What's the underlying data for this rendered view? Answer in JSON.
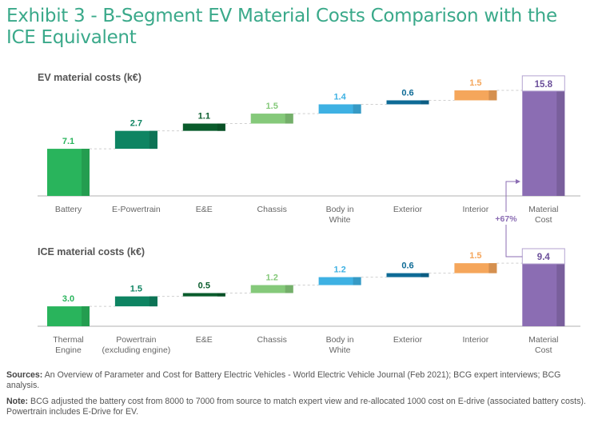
{
  "title": "Exhibit 3 - B-Segment EV Material Costs Comparison with the ICE Equivalent",
  "chart_data": [
    {
      "type": "bar",
      "subtype": "waterfall",
      "title": "EV material costs (k€)",
      "unit": "k€",
      "categories": [
        [
          "Battery"
        ],
        [
          "E-Powertrain"
        ],
        [
          "E&E"
        ],
        [
          "Chassis"
        ],
        [
          "Body in",
          "White"
        ],
        [
          "Exterior"
        ],
        [
          "Interior"
        ],
        [
          "Material",
          "Cost"
        ]
      ],
      "values": [
        7.1,
        2.7,
        1.1,
        1.5,
        1.4,
        0.6,
        1.5,
        15.8
      ],
      "value_labels": [
        "7.1",
        "2.7",
        "1.1",
        "1.5",
        "1.4",
        "0.6",
        "1.5",
        "15.8"
      ],
      "total_index": 7,
      "colors": [
        "#29b45c",
        "#0e8462",
        "#0a5c2c",
        "#85c97a",
        "#3eb1e3",
        "#0e6b96",
        "#f5a65b",
        "#8b6db3"
      ],
      "ylim": [
        0,
        16
      ],
      "grid": false
    },
    {
      "type": "bar",
      "subtype": "waterfall",
      "title": "ICE material costs (k€)",
      "unit": "k€",
      "categories": [
        [
          "Thermal",
          "Engine"
        ],
        [
          "Powertrain",
          "(excluding engine)"
        ],
        [
          "E&E"
        ],
        [
          "Chassis"
        ],
        [
          "Body in",
          "White"
        ],
        [
          "Exterior"
        ],
        [
          "Interior"
        ],
        [
          "Material",
          "Cost"
        ]
      ],
      "values": [
        3.0,
        1.5,
        0.5,
        1.2,
        1.2,
        0.6,
        1.5,
        9.4
      ],
      "value_labels": [
        "3.0",
        "1.5",
        "0.5",
        "1.2",
        "1.2",
        "0.6",
        "1.5",
        "9.4"
      ],
      "total_index": 7,
      "colors": [
        "#29b45c",
        "#0e8462",
        "#0a5c2c",
        "#85c97a",
        "#3eb1e3",
        "#0e6b96",
        "#f5a65b",
        "#8b6db3"
      ],
      "ylim": [
        0,
        16
      ],
      "grid": false
    }
  ],
  "comparison": {
    "label": "+67%",
    "color": "#8b6db3"
  },
  "colors": {
    "title": "#3aa98a",
    "axis": "#cccccc",
    "category_text": "#666666",
    "total_text": "#6b4f9a",
    "total_box_border": "#b3a3d0"
  },
  "footer": {
    "sources_label": "Sources:",
    "sources_text": "An Overview of Parameter and Cost for Battery Electric Vehicles - World Electric Vehicle Journal (Feb 2021); BCG expert interviews; BCG analysis.",
    "note_label": "Note:",
    "note_text": "BCG adjusted the battery cost from 8000 to 7000 from source to match expert view and re-allocated 1000 cost on E-drive (associated battery costs). Powertrain includes E-Drive for EV."
  }
}
